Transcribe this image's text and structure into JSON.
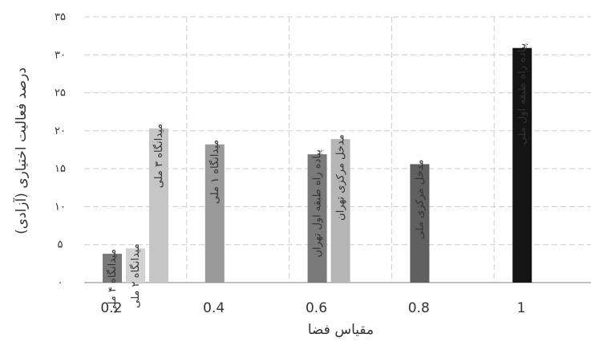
{
  "chart_data": {
    "type": "bar",
    "xlabel": "مقیاس فضا",
    "ylabel": "درصد فعالیت اختیاری (آزادی)",
    "ylim": [
      0,
      35
    ],
    "yticks": [
      {
        "value": 0,
        "label": "۰"
      },
      {
        "value": 5,
        "label": "۵"
      },
      {
        "value": 10,
        "label": "۱۰"
      },
      {
        "value": 15,
        "label": "۱۵"
      },
      {
        "value": 20,
        "label": "۲۰"
      },
      {
        "value": 25,
        "label": "۲۵"
      },
      {
        "value": 30,
        "label": "۳۰"
      },
      {
        "value": 35,
        "label": "۳۵"
      }
    ],
    "grid": "dashed",
    "groups": [
      {
        "category": "0.2",
        "bars": [
          {
            "label": "میدانگاه ۴ ملی",
            "value": 3.8,
            "color": "#7a7a7a"
          },
          {
            "label": "میدانگاه ۲ ملی",
            "value": 4.5,
            "color": "#d2d2d2"
          },
          {
            "label": "میدانگاه ۳ ملی",
            "value": 20.3,
            "color": "#c6c6c6"
          }
        ]
      },
      {
        "category": "0.4",
        "bars": [
          {
            "label": "میدانگاه ۱ ملی",
            "value": 18.2,
            "color": "#9a9a9a"
          }
        ]
      },
      {
        "category": "0.6",
        "bars": [
          {
            "label": "پیاده راه طبقه اول تهران",
            "value": 16.9,
            "color": "#7a7a7a"
          },
          {
            "label": "مدخل مرکزی تهران",
            "value": 18.9,
            "color": "#b5b5b5"
          }
        ]
      },
      {
        "category": "0.8",
        "bars": [
          {
            "label": "مدخل مرکزی ملی",
            "value": 15.6,
            "color": "#5f5f5f"
          }
        ]
      },
      {
        "category": "1",
        "bars": [
          {
            "label": "پیاده راه طبقه اول ملی",
            "value": 30.9,
            "color": "#141414"
          }
        ]
      }
    ]
  }
}
